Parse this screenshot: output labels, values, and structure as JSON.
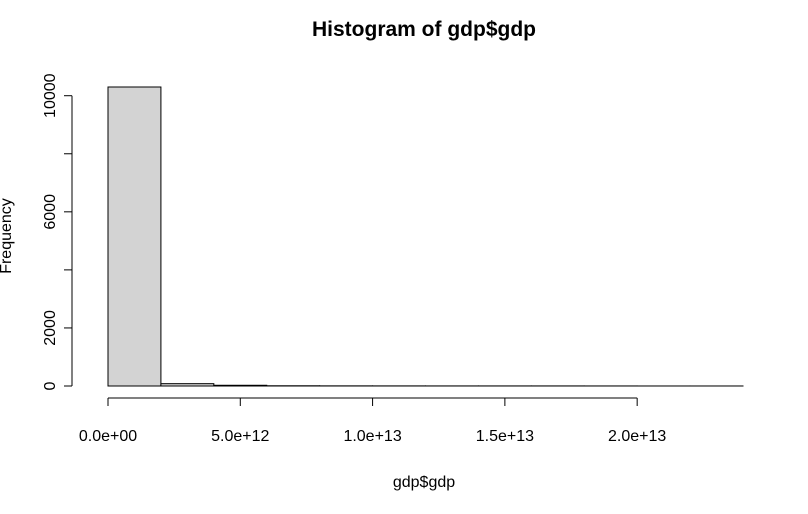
{
  "chart_data": {
    "type": "bar",
    "title": "Histogram of gdp$gdp",
    "xlabel": "gdp$gdp",
    "ylabel": "Frequency",
    "bins": [
      {
        "x0": 0,
        "x1": 2000000000000.0,
        "count": 10300
      },
      {
        "x0": 2000000000000.0,
        "x1": 4000000000000.0,
        "count": 80
      },
      {
        "x0": 4000000000000.0,
        "x1": 6000000000000.0,
        "count": 25
      },
      {
        "x0": 6000000000000.0,
        "x1": 8000000000000.0,
        "count": 8
      },
      {
        "x0": 8000000000000.0,
        "x1": 10000000000000.0,
        "count": 5
      },
      {
        "x0": 10000000000000.0,
        "x1": 12000000000000.0,
        "count": 4
      },
      {
        "x0": 12000000000000.0,
        "x1": 14000000000000.0,
        "count": 3
      },
      {
        "x0": 14000000000000.0,
        "x1": 16000000000000.0,
        "count": 3
      },
      {
        "x0": 16000000000000.0,
        "x1": 18000000000000.0,
        "count": 3
      },
      {
        "x0": 18000000000000.0,
        "x1": 20000000000000.0,
        "count": 2
      },
      {
        "x0": 20000000000000.0,
        "x1": 22000000000000.0,
        "count": 1
      },
      {
        "x0": 22000000000000.0,
        "x1": 24000000000000.0,
        "count": 1
      }
    ],
    "xlim": [
      0,
      24000000000000.0
    ],
    "ylim": [
      0,
      10300
    ],
    "x_ticks": [
      {
        "value": 0,
        "label": "0.0e+00"
      },
      {
        "value": 5000000000000.0,
        "label": "5.0e+12"
      },
      {
        "value": 10000000000000.0,
        "label": "1.0e+13"
      },
      {
        "value": 15000000000000.0,
        "label": "1.5e+13"
      },
      {
        "value": 20000000000000.0,
        "label": "2.0e+13"
      }
    ],
    "y_ticks": [
      {
        "value": 0,
        "label": "0"
      },
      {
        "value": 2000,
        "label": "2000"
      },
      {
        "value": 4000,
        "label": ""
      },
      {
        "value": 6000,
        "label": "6000"
      },
      {
        "value": 8000,
        "label": ""
      },
      {
        "value": 10000,
        "label": "10000"
      }
    ],
    "bar_fill": "#d3d3d3",
    "bar_stroke": "#000000",
    "grid": false,
    "legend": "none"
  }
}
